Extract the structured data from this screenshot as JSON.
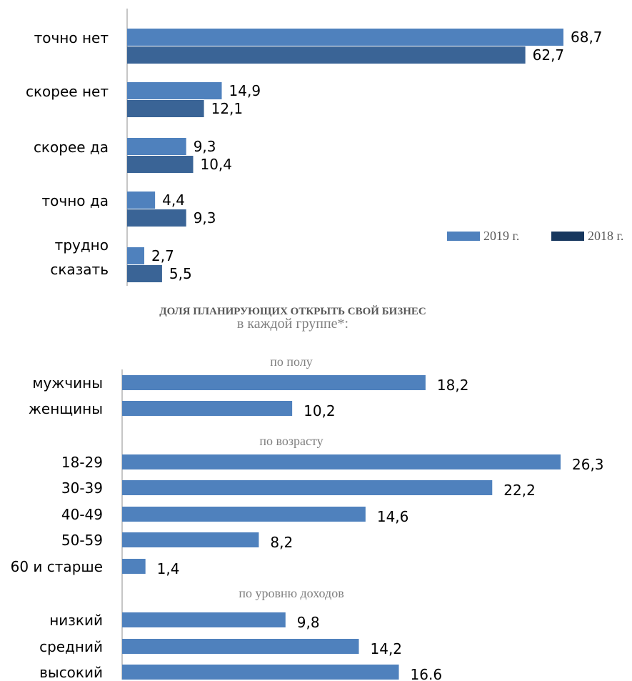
{
  "chart_data": [
    {
      "type": "bar",
      "orientation": "horizontal",
      "categories": [
        "точно нет",
        "скорее нет",
        "скорее да",
        "точно да",
        "трудно сказать"
      ],
      "series": [
        {
          "name": "2019 г.",
          "values": [
            68.7,
            14.9,
            9.3,
            4.4,
            2.7
          ],
          "labels": [
            "68,7",
            "14,9",
            "9,3",
            "4,4",
            "2,7"
          ],
          "color": "#4f81bd"
        },
        {
          "name": "2018 г.",
          "values": [
            62.7,
            12.1,
            10.4,
            9.3,
            5.5
          ],
          "labels": [
            "62,7",
            "12,1",
            "10,4",
            "9,3",
            "5,5"
          ],
          "color": "#3a6496"
        }
      ],
      "legend_colors": [
        "#4f81bd",
        "#17375e"
      ],
      "legend": "right",
      "grid": false
    },
    {
      "type": "bar",
      "orientation": "horizontal",
      "title": "ДОЛЯ ПЛАНИРУЮЩИХ ОТКРЫТЬ СВОЙ БИЗНЕС",
      "subtitle": "в каждой группе*:",
      "color": "#4f81bd",
      "groups": [
        {
          "name": "по полу",
          "categories": [
            "мужчины",
            "женщины"
          ],
          "values": [
            18.2,
            10.2
          ],
          "labels": [
            "18,2",
            "10,2"
          ]
        },
        {
          "name": "по возрасту",
          "categories": [
            "18-29",
            "30-39",
            "40-49",
            "50-59",
            "60 и старше"
          ],
          "values": [
            26.3,
            22.2,
            14.6,
            8.2,
            1.4
          ],
          "labels": [
            "26,3",
            "22,2",
            "14,6",
            "8,2",
            "1,4"
          ]
        },
        {
          "name": "по уровню доходов",
          "categories": [
            "низкий",
            "средний",
            "высокий"
          ],
          "values": [
            9.8,
            14.2,
            16.6
          ],
          "labels": [
            "9,8",
            "14,2",
            "16.6"
          ]
        }
      ],
      "grid": false
    }
  ]
}
